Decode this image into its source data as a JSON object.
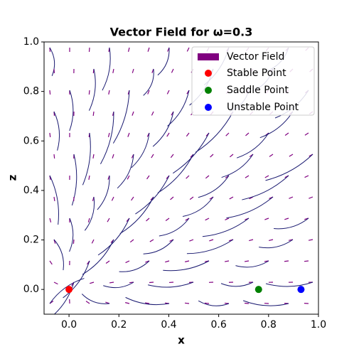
{
  "chart_data": {
    "type": "scatter",
    "title": "Vector Field for ω=0.3",
    "x_label": "x",
    "y_label": "z",
    "xlim": [
      -0.1,
      1.0
    ],
    "ylim": [
      -0.1,
      1.0
    ],
    "xticks": [
      {
        "value": 0,
        "label": "0.0"
      },
      {
        "value": 0.2,
        "label": "0.2"
      },
      {
        "value": 0.4,
        "label": "0.4"
      },
      {
        "value": 0.6,
        "label": "0.6"
      },
      {
        "value": 0.8,
        "label": "0.8"
      },
      {
        "value": 1.0,
        "label": "1.0"
      }
    ],
    "yticks": [
      {
        "value": 0,
        "label": "0.0"
      },
      {
        "value": 0.2,
        "label": "0.2"
      },
      {
        "value": 0.4,
        "label": "0.4"
      },
      {
        "value": 0.6,
        "label": "0.6"
      },
      {
        "value": 0.8,
        "label": "0.8"
      },
      {
        "value": 1.0,
        "label": "1.0"
      }
    ],
    "vector_field": {
      "name": "Vector Field",
      "color": "#800080",
      "stream_color": "#191970"
    },
    "legend": "upper right",
    "series": [
      {
        "name": "Stable Point",
        "color": "#ff0000",
        "x": [
          0
        ],
        "values": [
          0
        ]
      },
      {
        "name": "Saddle Point",
        "color": "#008000",
        "x": [
          0.76
        ],
        "values": [
          0
        ]
      },
      {
        "name": "Unstable Point",
        "color": "#0000ff",
        "x": [
          0.93
        ],
        "values": [
          0
        ]
      }
    ]
  }
}
